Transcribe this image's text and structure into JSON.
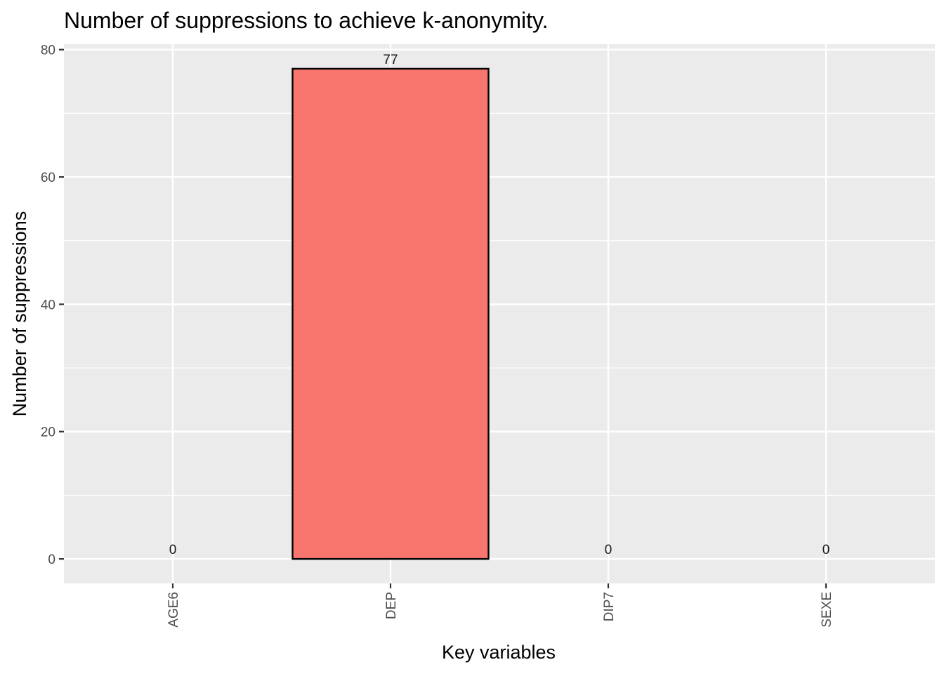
{
  "chart_data": {
    "type": "bar",
    "title": "Number of suppressions to achieve k-anonymity.",
    "xlabel": "Key variables",
    "ylabel": "Number of suppressions",
    "categories": [
      "AGE6",
      "DEP",
      "DIP7",
      "SEXE"
    ],
    "values": [
      0,
      77,
      0,
      0
    ],
    "data_labels": [
      "0",
      "77",
      "0",
      "0"
    ],
    "ylim": [
      -3.85,
      80.85
    ],
    "yticks": [
      0,
      20,
      40,
      60,
      80
    ],
    "ytick_labels": [
      "0",
      "20",
      "40",
      "60",
      "80"
    ],
    "grid": true,
    "legend": "none",
    "colors": {
      "bar_fill": "#F8766D",
      "bar_outline": "#000000",
      "panel_background": "#EBEBEB",
      "grid": "#FFFFFF",
      "tick_label": "#4D4D4D",
      "tick_mark": "#333333"
    }
  }
}
